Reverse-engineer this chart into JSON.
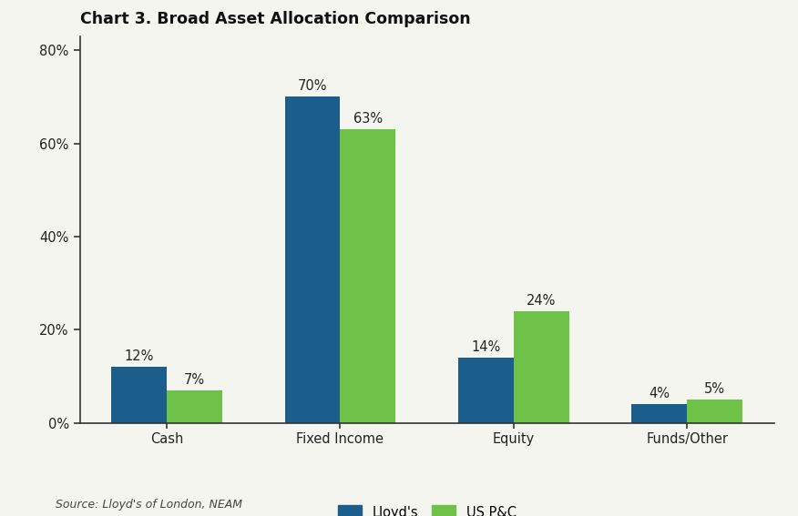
{
  "title": "Chart 3. Broad Asset Allocation Comparison",
  "categories": [
    "Cash",
    "Fixed Income",
    "Equity",
    "Funds/Other"
  ],
  "lloyds_values": [
    12,
    70,
    14,
    4
  ],
  "uspc_values": [
    7,
    63,
    24,
    5
  ],
  "lloyds_color": "#1b5e8c",
  "uspc_color": "#6dc247",
  "lloyds_label": "Lloyd's",
  "uspc_label": "US P&C",
  "yticks": [
    0,
    20,
    40,
    60,
    80
  ],
  "ytick_labels": [
    "0%",
    "20%",
    "40%",
    "60%",
    "80%"
  ],
  "ylim": [
    0,
    83
  ],
  "source": "Source: Lloyd's of London, NEAM",
  "bar_width": 0.32,
  "title_fontsize": 12.5,
  "tick_fontsize": 10.5,
  "annotation_fontsize": 10.5,
  "legend_fontsize": 10.5,
  "source_fontsize": 9,
  "background_color": "#f5f5f0"
}
